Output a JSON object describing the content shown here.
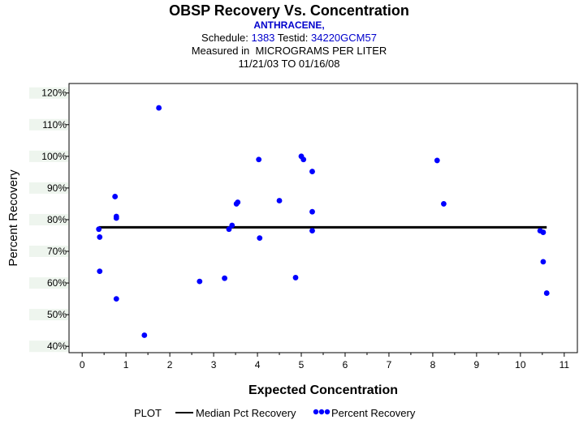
{
  "chart_data": {
    "type": "scatter",
    "title": "OBSP Recovery Vs. Concentration",
    "analyte": "ANTHRACENE,",
    "schedule_label": "Schedule:",
    "schedule_value": "1383",
    "testid_label": "Testid:",
    "testid_value": "34220GCM57",
    "measured_in": "Measured in  MICROGRAMS PER LITER",
    "date_range": "11/21/03 TO 01/16/08",
    "xlabel": "Expected Concentration",
    "ylabel": "Percent Recovery",
    "xlim": [
      -0.3,
      11.3
    ],
    "ylim": [
      38,
      123
    ],
    "x_ticks": [
      0,
      1,
      2,
      3,
      4,
      5,
      6,
      7,
      8,
      9,
      10,
      11
    ],
    "x_tick_labels": [
      "0",
      "1",
      "2",
      "3",
      "4",
      "5",
      "6",
      "7",
      "8",
      "9",
      "10",
      "11"
    ],
    "y_ticks": [
      40,
      50,
      60,
      70,
      80,
      90,
      100,
      110,
      120
    ],
    "y_tick_labels": [
      "40%",
      "50%",
      "60%",
      "70%",
      "80%",
      "90%",
      "100%",
      "110%",
      "120%"
    ],
    "median_pct_recovery": 77.6,
    "median_x_range": [
      0.38,
      10.6
    ],
    "series": [
      {
        "name": "Percent Recovery",
        "color": "#0000ff",
        "points": [
          {
            "x": 0.38,
            "y": 77.0
          },
          {
            "x": 0.4,
            "y": 74.5
          },
          {
            "x": 0.4,
            "y": 63.7
          },
          {
            "x": 0.75,
            "y": 87.3
          },
          {
            "x": 0.78,
            "y": 81.0
          },
          {
            "x": 0.78,
            "y": 80.5
          },
          {
            "x": 0.78,
            "y": 55.0
          },
          {
            "x": 1.42,
            "y": 43.5
          },
          {
            "x": 1.75,
            "y": 115.3
          },
          {
            "x": 2.68,
            "y": 60.5
          },
          {
            "x": 3.25,
            "y": 61.5
          },
          {
            "x": 3.35,
            "y": 77.0
          },
          {
            "x": 3.42,
            "y": 78.2
          },
          {
            "x": 3.52,
            "y": 85.0
          },
          {
            "x": 3.55,
            "y": 85.5
          },
          {
            "x": 4.03,
            "y": 99.0
          },
          {
            "x": 4.05,
            "y": 74.2
          },
          {
            "x": 4.5,
            "y": 86.0
          },
          {
            "x": 4.87,
            "y": 61.7
          },
          {
            "x": 5.0,
            "y": 100.0
          },
          {
            "x": 5.05,
            "y": 99.0
          },
          {
            "x": 5.25,
            "y": 95.2
          },
          {
            "x": 5.25,
            "y": 82.5
          },
          {
            "x": 5.25,
            "y": 76.5
          },
          {
            "x": 8.1,
            "y": 98.7
          },
          {
            "x": 8.25,
            "y": 85.0
          },
          {
            "x": 10.45,
            "y": 76.5
          },
          {
            "x": 10.52,
            "y": 76.0
          },
          {
            "x": 10.52,
            "y": 66.7
          },
          {
            "x": 10.6,
            "y": 56.8
          }
        ]
      },
      {
        "name": "Median Pct Recovery",
        "color": "#000000"
      }
    ],
    "legend": {
      "title": "PLOT",
      "line_label": "Median Pct Recovery",
      "points_label": "Percent Recovery",
      "placement": "bottom"
    },
    "grid": false
  }
}
